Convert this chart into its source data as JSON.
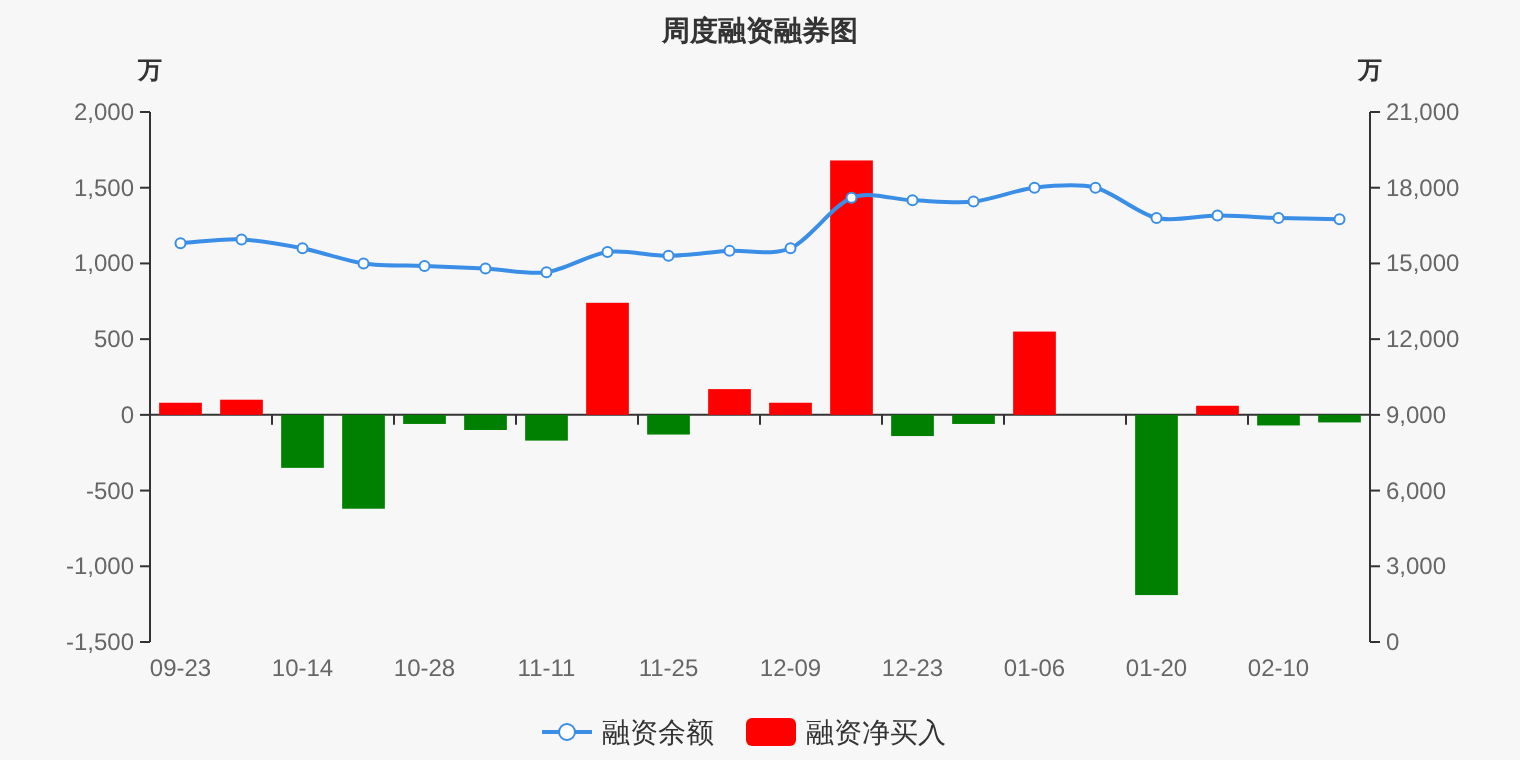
{
  "chart_data": {
    "type": "bar",
    "title": "周度融资融券图",
    "ylabel": "万",
    "y2label": "万",
    "categories": [
      "09-23",
      null,
      "10-14",
      null,
      "10-28",
      null,
      "11-11",
      null,
      "11-25",
      null,
      "12-09",
      null,
      "12-23",
      null,
      "01-06",
      null,
      "01-20",
      null,
      "02-10",
      null
    ],
    "series": [
      {
        "name": "融资余额",
        "type": "line",
        "axis": "y2",
        "color": "#3a8ee6",
        "marker": "circle",
        "values": [
          15800,
          15950,
          15600,
          15000,
          14900,
          14800,
          14650,
          15450,
          15300,
          15500,
          15600,
          17600,
          17500,
          17450,
          18000,
          18000,
          16800,
          16900,
          16800,
          16750
        ]
      },
      {
        "name": "融资净买入",
        "color": "#ff0000",
        "colors": [
          "#ff0000",
          "#ff0000",
          "#008000",
          "#008000",
          "#008000",
          "#008000",
          "#008000",
          "#ff0000",
          "#008000",
          "#ff0000",
          "#ff0000",
          "#ff0000",
          "#008000",
          "#008000",
          "#ff0000",
          "#008000",
          "#008000",
          "#ff0000",
          "#008000",
          "#008000"
        ],
        "values": [
          80,
          100,
          -350,
          -620,
          -60,
          -100,
          -170,
          740,
          -130,
          170,
          80,
          1680,
          -140,
          -60,
          550,
          0,
          -1190,
          60,
          -70,
          -50
        ]
      }
    ],
    "ylim": [
      -1500,
      2000
    ],
    "yticks": [
      {
        "value": -1500,
        "label": "-1,500"
      },
      {
        "value": -1000,
        "label": "-1,000"
      },
      -500,
      0,
      500,
      {
        "value": 1000,
        "label": "1,000"
      },
      {
        "value": 1500,
        "label": "1,500"
      },
      {
        "value": 2000,
        "label": "2,000"
      }
    ],
    "y2lim": [
      0,
      21000
    ],
    "y2ticks": [
      0,
      {
        "value": 3000,
        "label": "3,000"
      },
      {
        "value": 6000,
        "label": "6,000"
      },
      {
        "value": 9000,
        "label": "9,000"
      },
      {
        "value": 12000,
        "label": "12,000"
      },
      {
        "value": 15000,
        "label": "15,000"
      },
      {
        "value": 18000,
        "label": "18,000"
      },
      {
        "value": 21000,
        "label": "21,000"
      }
    ],
    "legend": "bottom"
  }
}
